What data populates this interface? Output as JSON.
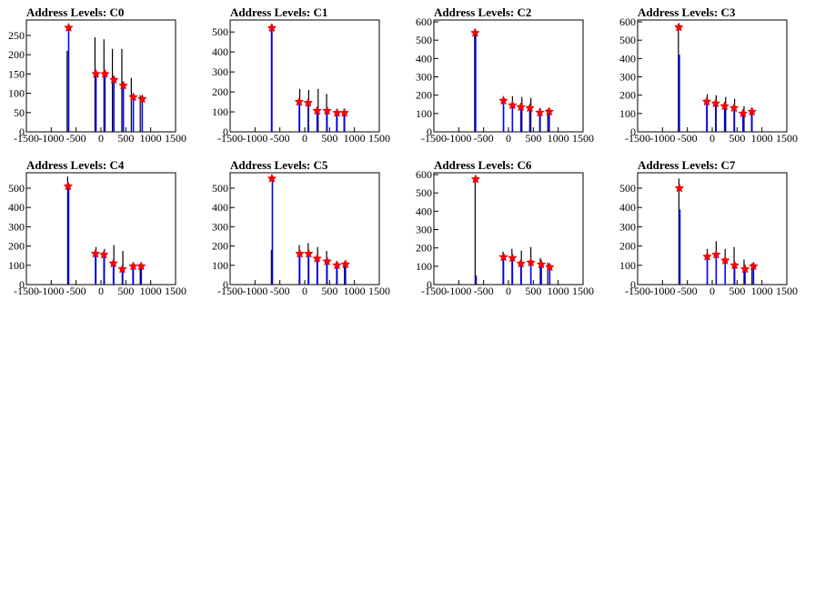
{
  "chart_data": [
    {
      "type": "bar",
      "title": "Address Levels: C0",
      "xlim": [
        -1500,
        1500
      ],
      "ylim": [
        0,
        290
      ],
      "xticks": [
        -1500,
        -1000,
        -500,
        0,
        500,
        1000,
        1500
      ],
      "yticks": [
        0,
        50,
        100,
        150,
        200,
        250
      ],
      "black_spikes": [
        [
          -680,
          210
        ],
        [
          -120,
          245
        ],
        [
          60,
          240
        ],
        [
          230,
          215
        ],
        [
          420,
          215
        ],
        [
          610,
          140
        ],
        [
          790,
          95
        ]
      ],
      "blue_spikes": [
        [
          -650,
          270
        ],
        [
          -100,
          150
        ],
        [
          80,
          150
        ],
        [
          260,
          135
        ],
        [
          450,
          120
        ],
        [
          650,
          90
        ],
        [
          830,
          85
        ]
      ],
      "peaks": [
        [
          -650,
          270
        ],
        [
          -100,
          150
        ],
        [
          80,
          150
        ],
        [
          260,
          135
        ],
        [
          450,
          120
        ],
        [
          650,
          90
        ],
        [
          830,
          85
        ]
      ]
    },
    {
      "type": "bar",
      "title": "Address Levels: C1",
      "xlim": [
        -1500,
        1500
      ],
      "ylim": [
        0,
        560
      ],
      "xticks": [
        -1500,
        -1000,
        -500,
        0,
        500,
        1000,
        1500
      ],
      "yticks": [
        0,
        100,
        200,
        300,
        400,
        500
      ],
      "black_spikes": [
        [
          -670,
          540
        ],
        [
          -100,
          215
        ],
        [
          80,
          210
        ],
        [
          270,
          215
        ],
        [
          440,
          190
        ],
        [
          640,
          105
        ],
        [
          790,
          115
        ]
      ],
      "blue_spikes": [
        [
          -660,
          520
        ],
        [
          -110,
          150
        ],
        [
          70,
          150
        ],
        [
          250,
          110
        ],
        [
          450,
          110
        ],
        [
          650,
          95
        ],
        [
          800,
          100
        ]
      ],
      "peaks": [
        [
          -660,
          520
        ],
        [
          -110,
          150
        ],
        [
          70,
          145
        ],
        [
          250,
          105
        ],
        [
          450,
          105
        ],
        [
          650,
          95
        ],
        [
          800,
          95
        ]
      ]
    },
    {
      "type": "bar",
      "title": "Address Levels: C2",
      "xlim": [
        -1500,
        1500
      ],
      "ylim": [
        0,
        610
      ],
      "xticks": [
        -1500,
        -1000,
        -500,
        0,
        500,
        1000,
        1500
      ],
      "yticks": [
        0,
        100,
        200,
        300,
        400,
        500,
        600
      ],
      "black_spikes": [
        [
          -680,
          560
        ],
        [
          -100,
          195
        ],
        [
          80,
          195
        ],
        [
          270,
          190
        ],
        [
          450,
          185
        ],
        [
          640,
          130
        ],
        [
          790,
          125
        ]
      ],
      "blue_spikes": [
        [
          -660,
          540
        ],
        [
          -100,
          170
        ],
        [
          80,
          145
        ],
        [
          250,
          135
        ],
        [
          430,
          130
        ],
        [
          630,
          110
        ],
        [
          820,
          115
        ]
      ],
      "peaks": [
        [
          -670,
          540
        ],
        [
          -100,
          170
        ],
        [
          80,
          145
        ],
        [
          250,
          135
        ],
        [
          430,
          130
        ],
        [
          630,
          105
        ],
        [
          820,
          110
        ]
      ]
    },
    {
      "type": "bar",
      "title": "Address Levels: C3",
      "xlim": [
        -1500,
        1500
      ],
      "ylim": [
        0,
        610
      ],
      "xticks": [
        -1500,
        -1000,
        -500,
        0,
        500,
        1000,
        1500
      ],
      "yticks": [
        0,
        100,
        200,
        300,
        400,
        500,
        600
      ],
      "black_spikes": [
        [
          -680,
          590
        ],
        [
          -100,
          205
        ],
        [
          80,
          200
        ],
        [
          270,
          190
        ],
        [
          450,
          180
        ],
        [
          640,
          140
        ],
        [
          790,
          130
        ]
      ],
      "blue_spikes": [
        [
          -660,
          420
        ],
        [
          -110,
          165
        ],
        [
          70,
          160
        ],
        [
          250,
          140
        ],
        [
          440,
          130
        ],
        [
          620,
          100
        ],
        [
          800,
          105
        ]
      ],
      "peaks": [
        [
          -670,
          570
        ],
        [
          -110,
          165
        ],
        [
          70,
          155
        ],
        [
          250,
          140
        ],
        [
          440,
          130
        ],
        [
          620,
          100
        ],
        [
          800,
          110
        ]
      ]
    },
    {
      "type": "bar",
      "title": "Address Levels: C4",
      "xlim": [
        -1500,
        1500
      ],
      "ylim": [
        0,
        580
      ],
      "xticks": [
        -1500,
        -1000,
        -500,
        0,
        500,
        1000,
        1500
      ],
      "yticks": [
        0,
        100,
        200,
        300,
        400,
        500
      ],
      "black_spikes": [
        [
          -670,
          560
        ],
        [
          -100,
          195
        ],
        [
          70,
          185
        ],
        [
          260,
          205
        ],
        [
          440,
          175
        ],
        [
          640,
          110
        ],
        [
          790,
          110
        ]
      ],
      "blue_spikes": [
        [
          -650,
          510
        ],
        [
          -110,
          160
        ],
        [
          60,
          160
        ],
        [
          250,
          115
        ],
        [
          430,
          85
        ],
        [
          650,
          100
        ],
        [
          810,
          100
        ]
      ],
      "peaks": [
        [
          -660,
          510
        ],
        [
          -110,
          160
        ],
        [
          60,
          155
        ],
        [
          250,
          110
        ],
        [
          430,
          80
        ],
        [
          650,
          95
        ],
        [
          810,
          95
        ]
      ]
    },
    {
      "type": "bar",
      "title": "Address Levels: C5",
      "xlim": [
        -1500,
        1500
      ],
      "ylim": [
        0,
        580
      ],
      "xticks": [
        -1500,
        -1000,
        -500,
        0,
        500,
        1000,
        1500
      ],
      "yticks": [
        0,
        100,
        200,
        300,
        400,
        500
      ],
      "black_spikes": [
        [
          -670,
          180
        ],
        [
          -110,
          205
        ],
        [
          70,
          215
        ],
        [
          260,
          195
        ],
        [
          440,
          175
        ],
        [
          640,
          120
        ],
        [
          800,
          120
        ]
      ],
      "blue_spikes": [
        [
          -650,
          550
        ],
        [
          -100,
          160
        ],
        [
          80,
          160
        ],
        [
          250,
          135
        ],
        [
          450,
          120
        ],
        [
          650,
          100
        ],
        [
          820,
          105
        ]
      ],
      "peaks": [
        [
          -660,
          550
        ],
        [
          -100,
          160
        ],
        [
          80,
          160
        ],
        [
          250,
          135
        ],
        [
          450,
          120
        ],
        [
          650,
          100
        ],
        [
          820,
          105
        ]
      ]
    },
    {
      "type": "bar",
      "title": "Address Levels: C6",
      "xlim": [
        -1500,
        1500
      ],
      "ylim": [
        0,
        610
      ],
      "xticks": [
        -1500,
        -1000,
        -500,
        0,
        500,
        1000,
        1500
      ],
      "yticks": [
        0,
        100,
        200,
        300,
        400,
        500,
        600
      ],
      "black_spikes": [
        [
          -670,
          580
        ],
        [
          -110,
          180
        ],
        [
          70,
          195
        ],
        [
          260,
          185
        ],
        [
          450,
          205
        ],
        [
          640,
          145
        ],
        [
          790,
          120
        ]
      ],
      "blue_spikes": [
        [
          -650,
          50
        ],
        [
          -100,
          155
        ],
        [
          80,
          150
        ],
        [
          250,
          115
        ],
        [
          450,
          120
        ],
        [
          660,
          110
        ],
        [
          830,
          95
        ]
      ],
      "peaks": [
        [
          -660,
          575
        ],
        [
          -100,
          150
        ],
        [
          80,
          145
        ],
        [
          250,
          115
        ],
        [
          450,
          120
        ],
        [
          660,
          110
        ],
        [
          830,
          95
        ]
      ]
    },
    {
      "type": "bar",
      "title": "Address Levels: C7",
      "xlim": [
        -1500,
        1500
      ],
      "ylim": [
        0,
        580
      ],
      "xticks": [
        -1500,
        -1000,
        -500,
        0,
        500,
        1000,
        1500
      ],
      "yticks": [
        0,
        100,
        200,
        300,
        400,
        500
      ],
      "black_spikes": [
        [
          -670,
          550
        ],
        [
          -100,
          185
        ],
        [
          80,
          225
        ],
        [
          260,
          185
        ],
        [
          440,
          195
        ],
        [
          640,
          130
        ],
        [
          800,
          110
        ]
      ],
      "blue_spikes": [
        [
          -650,
          390
        ],
        [
          -100,
          145
        ],
        [
          80,
          160
        ],
        [
          260,
          130
        ],
        [
          450,
          105
        ],
        [
          660,
          85
        ],
        [
          830,
          95
        ]
      ],
      "peaks": [
        [
          -660,
          500
        ],
        [
          -100,
          145
        ],
        [
          80,
          155
        ],
        [
          260,
          125
        ],
        [
          450,
          100
        ],
        [
          660,
          80
        ],
        [
          830,
          95
        ]
      ]
    }
  ]
}
